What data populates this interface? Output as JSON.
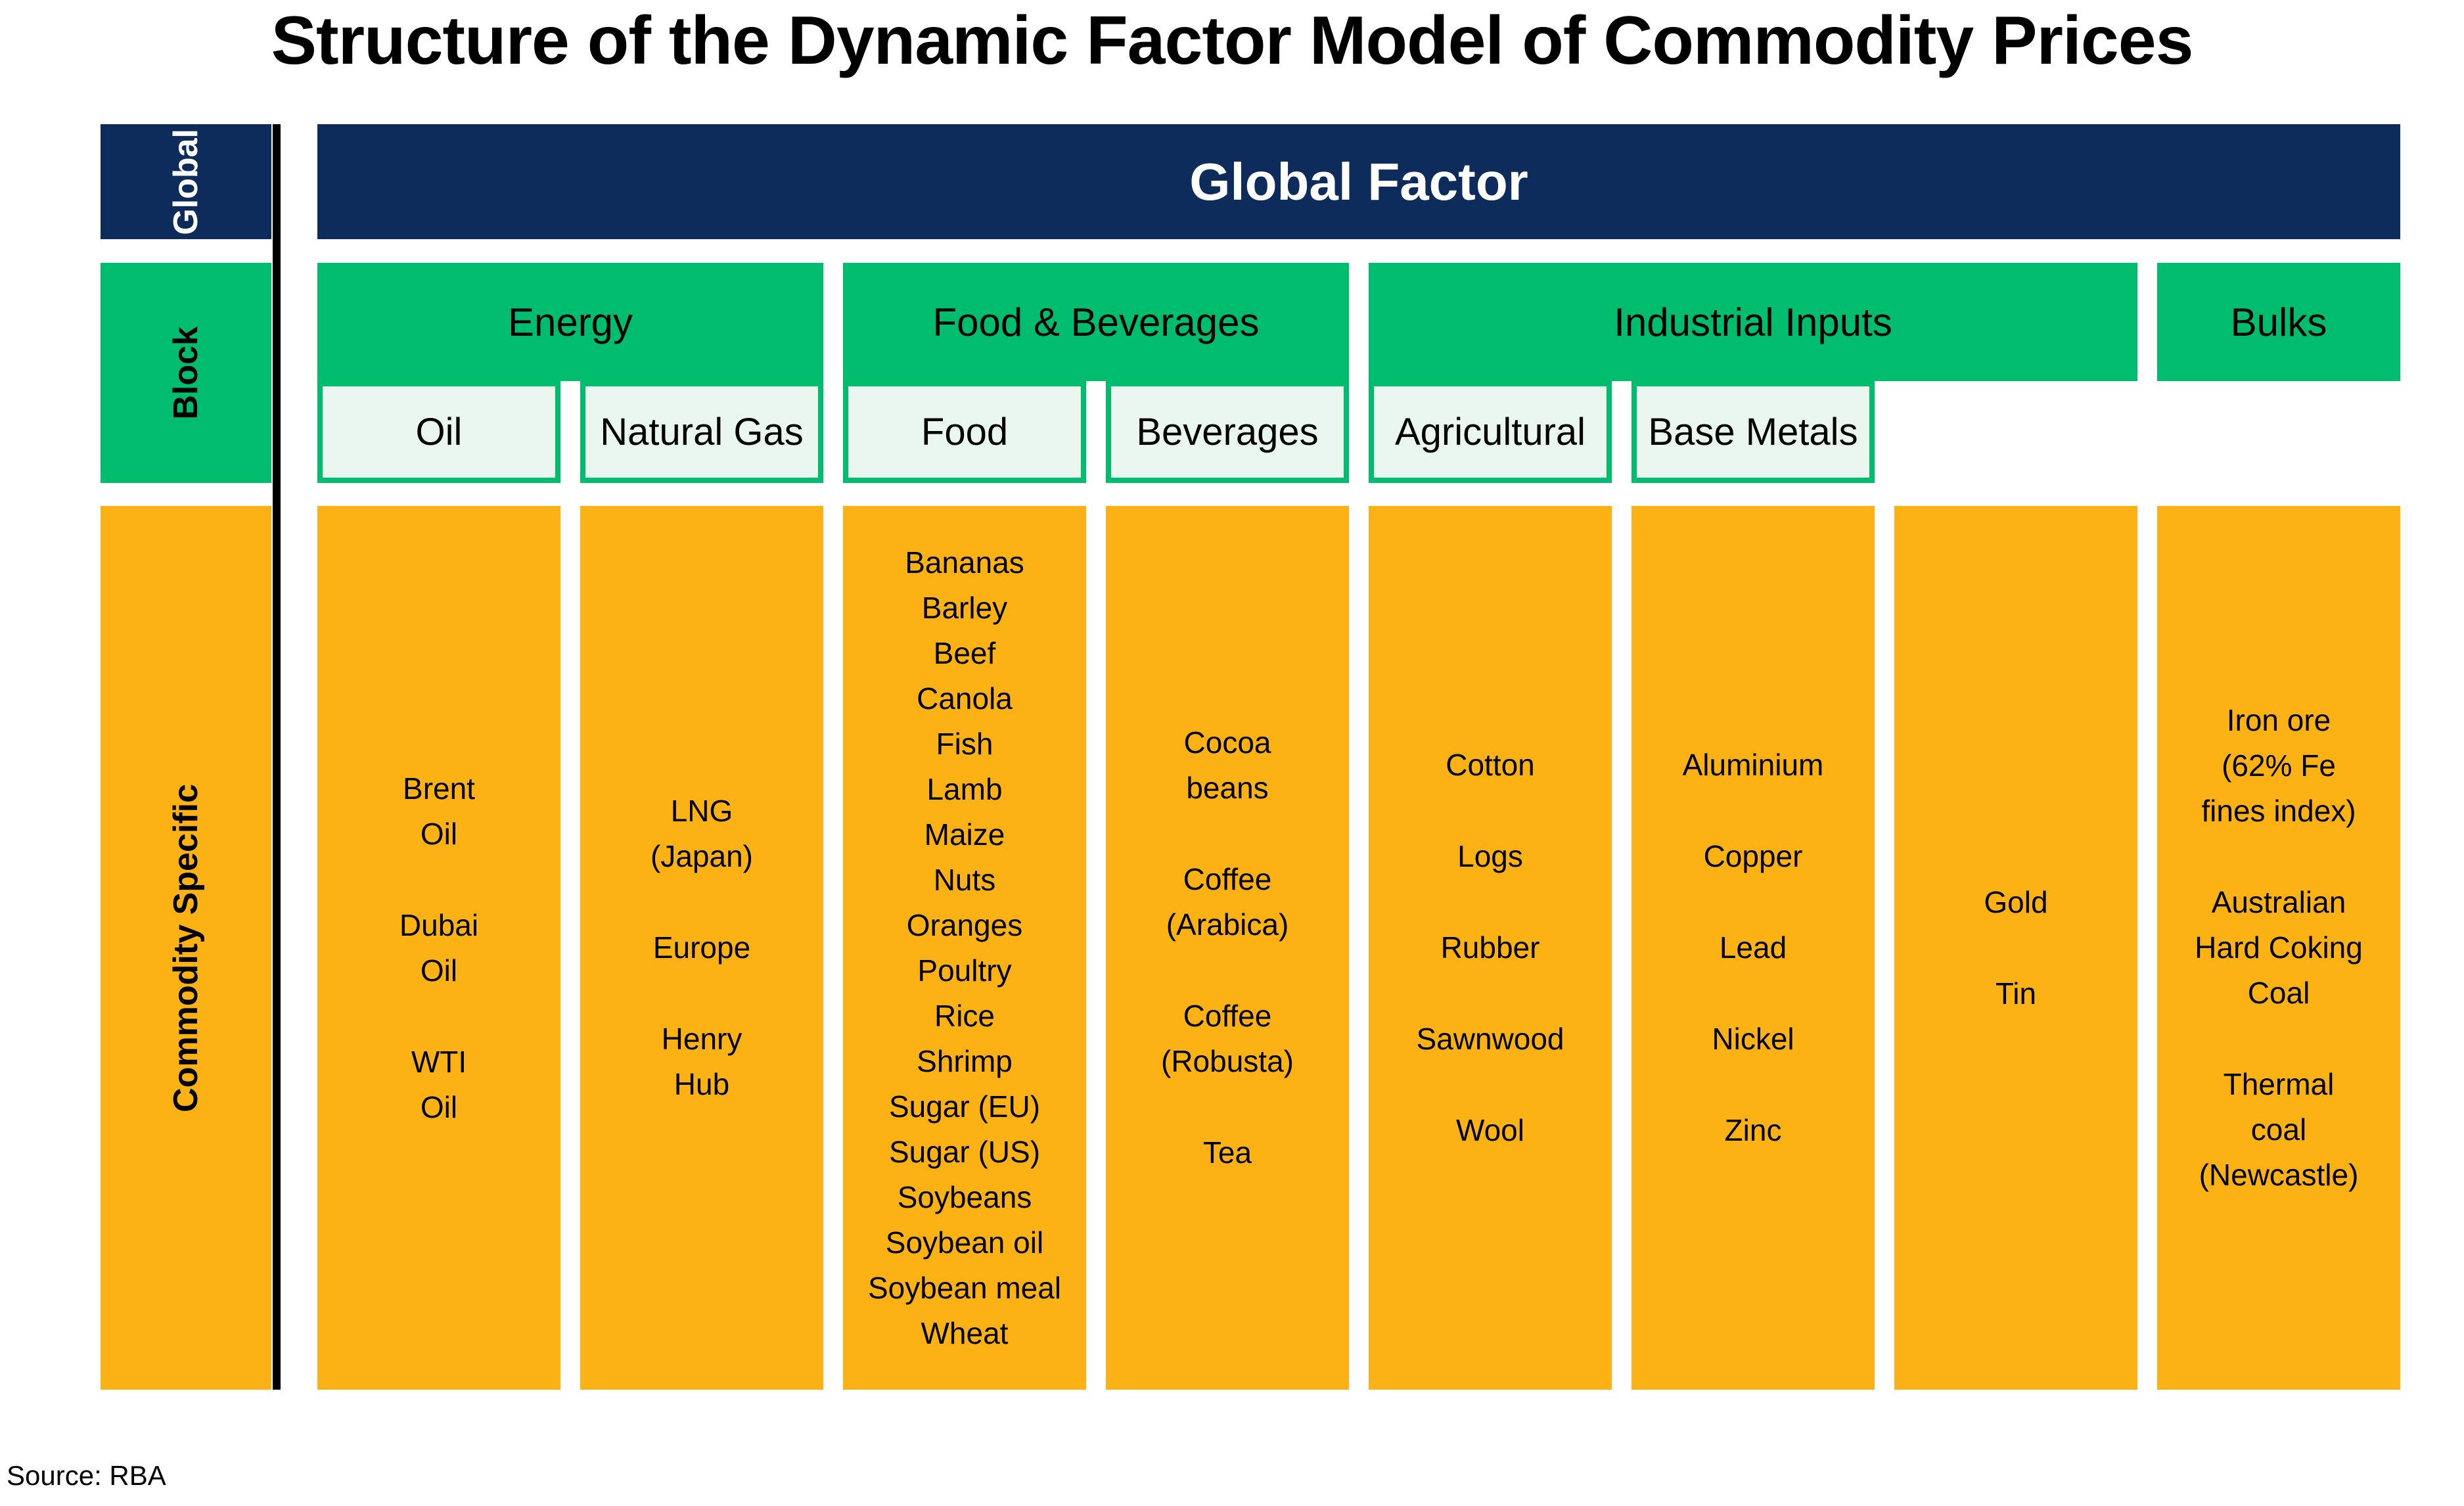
{
  "title": "Structure of the Dynamic Factor Model of Commodity Prices",
  "source": "Source: RBA",
  "colors": {
    "navy": "#0e2c5b",
    "green": "#00bd6d",
    "mint": "#e9f7f0",
    "orange": "#fcb215"
  },
  "row_labels": {
    "global": "Global",
    "block": "Block",
    "commodity": "Commodity Specific"
  },
  "global_factor_label": "Global Factor",
  "blocks": [
    {
      "label": "Energy",
      "slug": "energy",
      "col_start": 1,
      "col_span": 2,
      "sub_blocks": [
        {
          "label": "Oil",
          "slug": "oil",
          "col": 1
        },
        {
          "label": "Natural Gas",
          "slug": "natural-gas",
          "col": 2
        }
      ]
    },
    {
      "label": "Food & Beverages",
      "slug": "food-beverages",
      "col_start": 3,
      "col_span": 2,
      "sub_blocks": [
        {
          "label": "Food",
          "slug": "food",
          "col": 3
        },
        {
          "label": "Beverages",
          "slug": "beverages",
          "col": 4
        }
      ]
    },
    {
      "label": "Industrial Inputs",
      "slug": "industrial-inputs",
      "col_start": 5,
      "col_span": 3,
      "sub_blocks": [
        {
          "label": "Agricultural",
          "slug": "agricultural",
          "col": 5
        },
        {
          "label": "Base Metals",
          "slug": "base-metals",
          "col": 6
        }
      ]
    },
    {
      "label": "Bulks",
      "slug": "bulks",
      "col_start": 8,
      "col_span": 1,
      "sub_blocks": []
    }
  ],
  "columns": [
    {
      "slug": "oil",
      "groups": [
        [
          "Brent",
          "Oil"
        ],
        [
          "Dubai",
          "Oil"
        ],
        [
          "WTI",
          "Oil"
        ]
      ]
    },
    {
      "slug": "natural-gas",
      "groups": [
        [
          "LNG",
          "(Japan)"
        ],
        [
          "Europe"
        ],
        [
          "Henry",
          "Hub"
        ]
      ]
    },
    {
      "slug": "food",
      "groups": [
        [
          "Bananas",
          "Barley",
          "Beef",
          "Canola",
          "Fish",
          "Lamb",
          "Maize",
          "Nuts",
          "Oranges",
          "Poultry",
          "Rice",
          "Shrimp",
          "Sugar (EU)",
          "Sugar (US)",
          "Soybeans",
          "Soybean oil",
          "Soybean meal",
          "Wheat"
        ]
      ]
    },
    {
      "slug": "beverages",
      "groups": [
        [
          "Cocoa",
          "beans"
        ],
        [
          "Coffee",
          "(Arabica)"
        ],
        [
          "Coffee",
          "(Robusta)"
        ],
        [
          "Tea"
        ]
      ]
    },
    {
      "slug": "agricultural",
      "groups": [
        [
          "Cotton"
        ],
        [
          "Logs"
        ],
        [
          "Rubber"
        ],
        [
          "Sawnwood"
        ],
        [
          "Wool"
        ]
      ]
    },
    {
      "slug": "base-metals",
      "groups": [
        [
          "Aluminium"
        ],
        [
          "Copper"
        ],
        [
          "Lead"
        ],
        [
          "Nickel"
        ],
        [
          "Zinc"
        ]
      ]
    },
    {
      "slug": "gold-tin",
      "groups": [
        [
          "Gold"
        ],
        [
          "Tin"
        ]
      ]
    },
    {
      "slug": "bulks",
      "groups": [
        [
          "Iron ore",
          "(62% Fe",
          "fines index)"
        ],
        [
          "Australian",
          "Hard Coking",
          "Coal"
        ],
        [
          "Thermal",
          "coal",
          "(Newcastle)"
        ]
      ]
    }
  ]
}
